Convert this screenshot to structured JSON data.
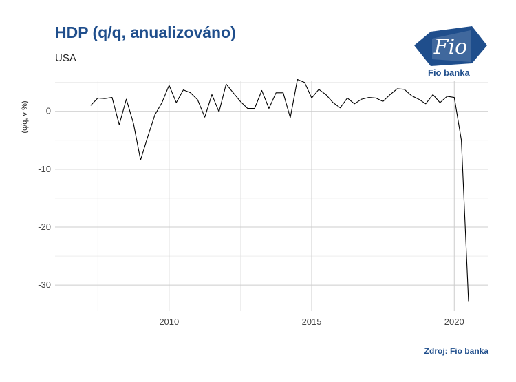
{
  "header": {
    "title": "HDP (q/q, anualizováno)",
    "subtitle": "USA"
  },
  "logo": {
    "mark_text": "Fio",
    "name": "Fio banka",
    "color": "#1f4e8c"
  },
  "source": "Zdroj: Fio banka",
  "chart_data": {
    "type": "line",
    "title": "HDP (q/q, anualizováno)",
    "subtitle": "USA",
    "xlabel": "",
    "ylabel": "(q/q, v %)",
    "xlim": [
      2006.0,
      2021.2
    ],
    "ylim": [
      -34.5,
      5.2
    ],
    "x_ticks": [
      2010,
      2015,
      2020
    ],
    "y_ticks": [
      0,
      -10,
      -20,
      -30
    ],
    "grid": true,
    "line_color": "#000000",
    "series": [
      {
        "x": [
          2007.25,
          2007.5,
          2007.75,
          2008.0,
          2008.25,
          2008.5,
          2008.75,
          2009.0,
          2009.25,
          2009.5,
          2009.75,
          2010.0,
          2010.25,
          2010.5,
          2010.75,
          2011.0,
          2011.25,
          2011.5,
          2011.75,
          2012.0,
          2012.25,
          2012.5,
          2012.75,
          2013.0,
          2013.25,
          2013.5,
          2013.75,
          2014.0,
          2014.25,
          2014.5,
          2014.75,
          2015.0,
          2015.25,
          2015.5,
          2015.75,
          2016.0,
          2016.25,
          2016.5,
          2016.75,
          2017.0,
          2017.25,
          2017.5,
          2017.75,
          2018.0,
          2018.25,
          2018.5,
          2018.75,
          2019.0,
          2019.25,
          2019.5,
          2019.75,
          2020.0,
          2020.25,
          2020.5
        ],
        "y": [
          1.0,
          2.3,
          2.2,
          2.4,
          -2.3,
          2.1,
          -2.1,
          -8.4,
          -4.4,
          -0.6,
          1.5,
          4.5,
          1.5,
          3.7,
          3.2,
          2.0,
          -1.0,
          2.9,
          -0.1,
          4.7,
          3.2,
          1.7,
          0.5,
          0.5,
          3.6,
          0.5,
          3.2,
          3.2,
          -1.1,
          5.5,
          5.0,
          2.3,
          3.8,
          2.9,
          1.5,
          0.6,
          2.3,
          1.3,
          2.1,
          2.4,
          2.3,
          1.7,
          2.9,
          3.9,
          3.8,
          2.7,
          2.1,
          1.3,
          2.9,
          1.5,
          2.6,
          2.4,
          -5.0,
          -32.9
        ]
      }
    ]
  }
}
